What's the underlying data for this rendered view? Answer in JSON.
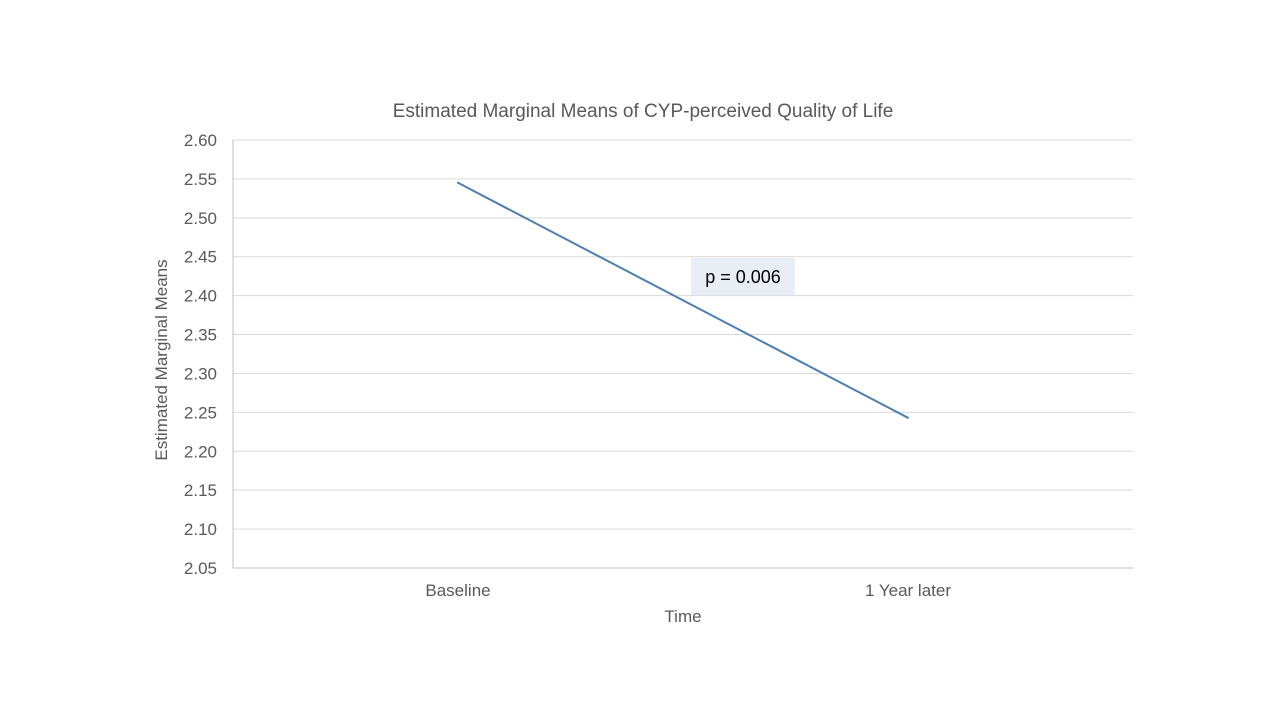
{
  "chart_data": {
    "type": "line",
    "title": "Estimated Marginal Means of CYP-perceived Quality of Life",
    "xlabel": "Time",
    "ylabel": "Estimated Marginal Means",
    "categories": [
      "Baseline",
      "1 Year later"
    ],
    "series": [
      {
        "values": [
          2.545,
          2.243
        ],
        "color": "#4e7fb3"
      }
    ],
    "ylim": [
      2.05,
      2.6
    ],
    "yticks": [
      "2.05",
      "2.10",
      "2.15",
      "2.20",
      "2.25",
      "2.30",
      "2.35",
      "2.40",
      "2.45",
      "2.50",
      "2.55",
      "2.60"
    ],
    "grid": true,
    "annotation": {
      "text": "p = 0.006",
      "background": "#e9edf4"
    },
    "colors": {
      "grid": "#d9d9d9",
      "axis": "#bfbfbf",
      "text": "#595959"
    }
  }
}
